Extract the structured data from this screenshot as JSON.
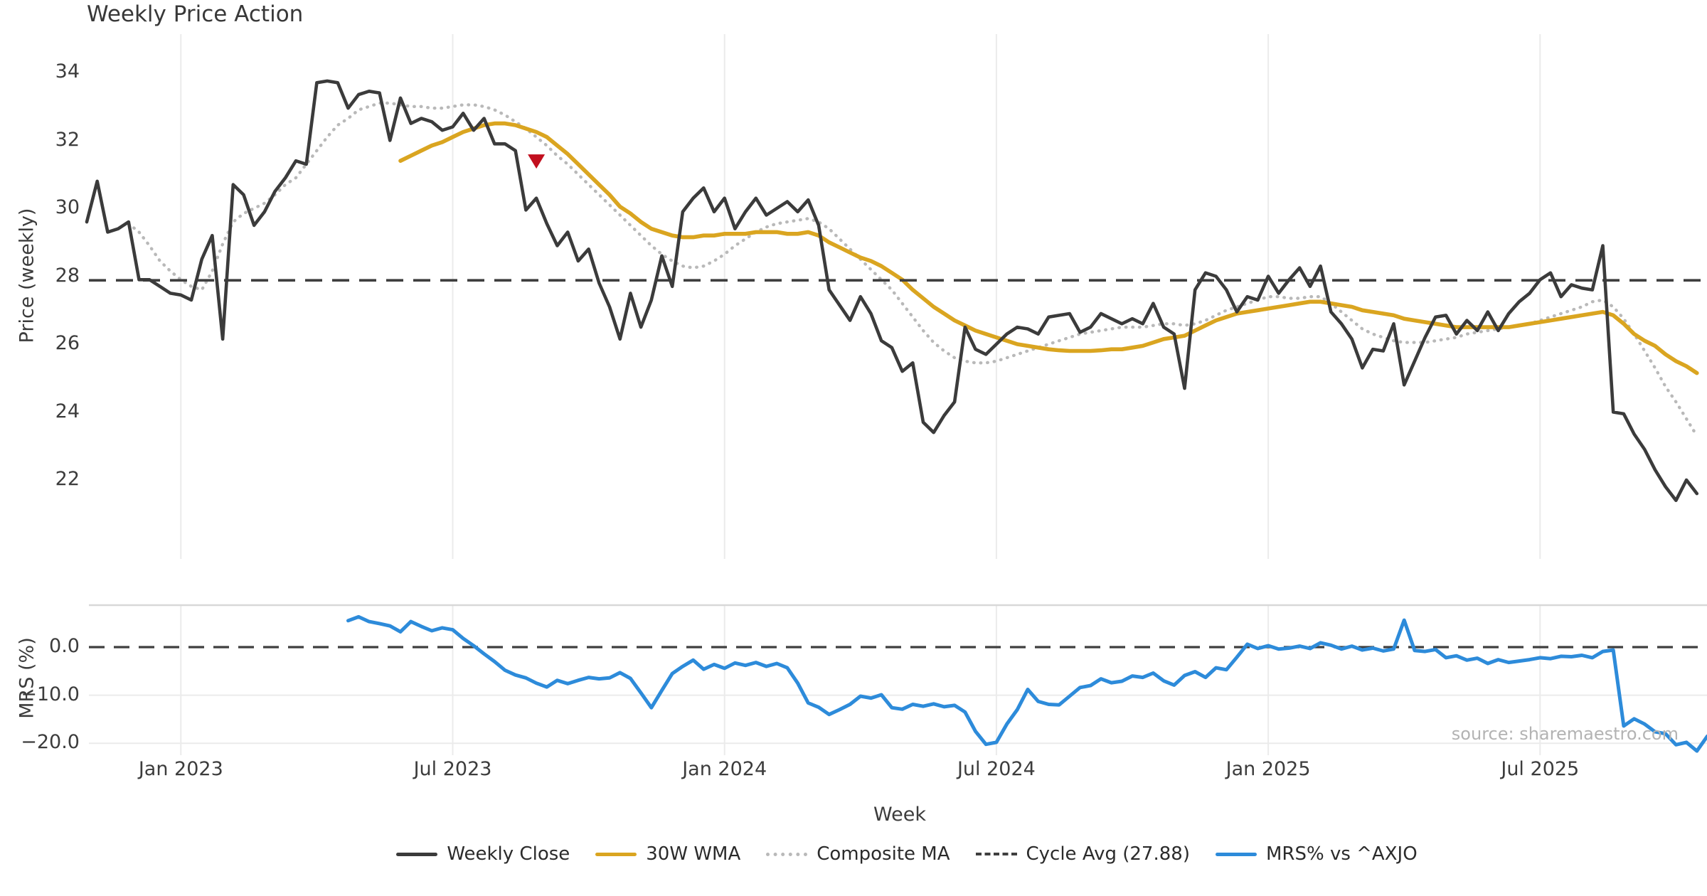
{
  "title": "Weekly Price Action",
  "source_note": "source: sharemaestro.com",
  "colors": {
    "weekly_close": "#3b3b3b",
    "wma_30w": "#daa520",
    "composite_ma": "#b9b9b9",
    "cycle_avg": "#3f3f3f",
    "mrs": "#2d8bda",
    "marker": "#c20f1e",
    "gridline": "#ebebeb",
    "spine": "#d8d8d8"
  },
  "legend": {
    "items": [
      {
        "label": "Weekly Close",
        "swatch": "solid-dark"
      },
      {
        "label": "30W WMA",
        "swatch": "solid-gold"
      },
      {
        "label": "Composite MA",
        "swatch": "dotted-gray"
      },
      {
        "label": "Cycle Avg (27.88)",
        "swatch": "dashed-dark"
      },
      {
        "label": "MRS% vs ^AXJO",
        "swatch": "solid-blue"
      }
    ]
  },
  "axes": {
    "main": {
      "ylabel": "Price (weekly)",
      "ylim": [
        21.0,
        34.5
      ],
      "yticks": [
        {
          "label": "34",
          "value": 34
        },
        {
          "label": "32",
          "value": 32
        },
        {
          "label": "30",
          "value": 30
        },
        {
          "label": "28",
          "value": 28
        },
        {
          "label": "26",
          "value": 26
        },
        {
          "label": "24",
          "value": 24
        },
        {
          "label": "22",
          "value": 22
        }
      ]
    },
    "bottom": {
      "ylabel": "MRS (%)",
      "yticks": [
        {
          "label": "0.0",
          "value": 0
        },
        {
          "label": "−10.0",
          "value": -10
        },
        {
          "label": "−20.0",
          "value": -20
        }
      ]
    },
    "x": {
      "label": "Week",
      "ticks": [
        {
          "label": "Jan 2023",
          "week": 9
        },
        {
          "label": "Jul 2023",
          "week": 35
        },
        {
          "label": "Jan 2024",
          "week": 61
        },
        {
          "label": "Jul 2024",
          "week": 87
        },
        {
          "label": "Jan 2025",
          "week": 113
        },
        {
          "label": "Jul 2025",
          "week": 139
        }
      ]
    }
  },
  "chart_data": {
    "type": "line",
    "x_unit": "weekly index (0 = first plotted week, late Oct 2022)",
    "grid": "vertical gridlines at month ticks; light horizontal gridlines in lower panel",
    "legend_position": "bottom center",
    "cycle_avg": 27.88,
    "marker": {
      "week_index": 43,
      "price": 31.4,
      "shape": "triangle-down",
      "meaning": "sell signal"
    },
    "panels": [
      {
        "name": "price",
        "ylabel": "Price (weekly)",
        "ylim": [
          21.0,
          34.5
        ],
        "series": [
          {
            "name": "Weekly Close",
            "style": "solid",
            "start_index": 0,
            "values": [
              29.6,
              30.8,
              29.3,
              29.4,
              29.6,
              27.9,
              27.9,
              27.7,
              27.5,
              27.45,
              27.3,
              28.5,
              29.2,
              26.15,
              30.7,
              30.4,
              29.5,
              29.9,
              30.5,
              30.9,
              31.4,
              31.3,
              33.7,
              33.75,
              33.7,
              32.95,
              33.35,
              33.45,
              33.4,
              32.0,
              33.25,
              32.5,
              32.65,
              32.55,
              32.3,
              32.4,
              32.8,
              32.3,
              32.65,
              31.9,
              31.9,
              31.7,
              29.95,
              30.3,
              29.55,
              28.9,
              29.3,
              28.45,
              28.8,
              27.8,
              27.1,
              26.15,
              27.5,
              26.5,
              27.3,
              28.6,
              27.7,
              29.9,
              30.3,
              30.6,
              29.9,
              30.3,
              29.4,
              29.9,
              30.3,
              29.8,
              30.0,
              30.2,
              29.9,
              30.25,
              29.5,
              27.6,
              27.15,
              26.7,
              27.4,
              26.9,
              26.1,
              25.9,
              25.2,
              25.45,
              23.7,
              23.4,
              23.9,
              24.3,
              26.5,
              25.85,
              25.7,
              26.0,
              26.3,
              26.5,
              26.45,
              26.3,
              26.8,
              26.85,
              26.9,
              26.35,
              26.5,
              26.9,
              26.75,
              26.6,
              26.75,
              26.6,
              27.2,
              26.5,
              26.3,
              24.7,
              27.6,
              28.1,
              28.0,
              27.6,
              26.95,
              27.4,
              27.3,
              28.0,
              27.5,
              27.9,
              28.25,
              27.7,
              28.3,
              26.95,
              26.6,
              26.15,
              25.3,
              25.85,
              25.8,
              26.6,
              24.8,
              25.5,
              26.2,
              26.8,
              26.85,
              26.3,
              26.7,
              26.4,
              26.95,
              26.4,
              26.9,
              27.25,
              27.5,
              27.9,
              28.1,
              27.4,
              27.75,
              27.65,
              27.6,
              28.9,
              24.0,
              23.95,
              23.35,
              22.9,
              22.3,
              21.8,
              21.4,
              22.0,
              21.6
            ]
          },
          {
            "name": "30W WMA",
            "style": "solid",
            "start_index": 30,
            "values": [
              31.4,
              31.55,
              31.7,
              31.85,
              31.95,
              32.1,
              32.25,
              32.35,
              32.45,
              32.5,
              32.5,
              32.45,
              32.35,
              32.25,
              32.1,
              31.85,
              31.6,
              31.3,
              31.0,
              30.7,
              30.4,
              30.05,
              29.85,
              29.6,
              29.4,
              29.3,
              29.2,
              29.15,
              29.15,
              29.2,
              29.2,
              29.25,
              29.25,
              29.25,
              29.3,
              29.3,
              29.3,
              29.25,
              29.25,
              29.3,
              29.2,
              29.0,
              28.85,
              28.7,
              28.55,
              28.45,
              28.3,
              28.1,
              27.9,
              27.6,
              27.35,
              27.1,
              26.9,
              26.7,
              26.55,
              26.4,
              26.3,
              26.2,
              26.1,
              26.0,
              25.95,
              25.9,
              25.85,
              25.82,
              25.8,
              25.8,
              25.8,
              25.82,
              25.85,
              25.85,
              25.9,
              25.95,
              26.05,
              26.15,
              26.2,
              26.25,
              26.4,
              26.55,
              26.7,
              26.8,
              26.9,
              26.95,
              27.0,
              27.05,
              27.1,
              27.15,
              27.2,
              27.25,
              27.25,
              27.2,
              27.15,
              27.1,
              27.0,
              26.95,
              26.9,
              26.85,
              26.75,
              26.7,
              26.65,
              26.6,
              26.55,
              26.5,
              26.5,
              26.5,
              26.5,
              26.5,
              26.5,
              26.55,
              26.6,
              26.65,
              26.7,
              26.75,
              26.8,
              26.85,
              26.9,
              26.95,
              26.85,
              26.6,
              26.3,
              26.1,
              25.95,
              25.7,
              25.5,
              25.35,
              25.15
            ]
          },
          {
            "name": "Composite MA",
            "style": "dotted",
            "start_index": 4,
            "values": [
              29.55,
              29.3,
              28.9,
              28.45,
              28.15,
              27.9,
              27.7,
              27.6,
              28.15,
              28.95,
              29.6,
              29.85,
              30.0,
              30.15,
              30.4,
              30.7,
              30.9,
              31.3,
              31.7,
              32.1,
              32.45,
              32.65,
              32.9,
              33.0,
              33.1,
              33.1,
              33.05,
              33.0,
              33.0,
              32.95,
              32.95,
              33.0,
              33.05,
              33.05,
              33.0,
              32.9,
              32.75,
              32.55,
              32.35,
              32.1,
              31.85,
              31.55,
              31.3,
              31.0,
              30.7,
              30.4,
              30.1,
              29.8,
              29.5,
              29.2,
              28.9,
              28.65,
              28.45,
              28.3,
              28.25,
              28.3,
              28.45,
              28.65,
              28.9,
              29.1,
              29.3,
              29.45,
              29.55,
              29.6,
              29.65,
              29.7,
              29.6,
              29.4,
              29.1,
              28.8,
              28.5,
              28.2,
              27.9,
              27.6,
              27.2,
              26.8,
              26.4,
              26.05,
              25.8,
              25.6,
              25.5,
              25.45,
              25.45,
              25.5,
              25.6,
              25.7,
              25.8,
              25.9,
              26.0,
              26.1,
              26.2,
              26.3,
              26.35,
              26.4,
              26.45,
              26.5,
              26.5,
              26.5,
              26.55,
              26.6,
              26.6,
              26.55,
              26.6,
              26.7,
              26.85,
              27.0,
              27.1,
              27.2,
              27.3,
              27.4,
              27.4,
              27.35,
              27.35,
              27.4,
              27.4,
              27.2,
              26.95,
              26.7,
              26.45,
              26.3,
              26.2,
              26.1,
              26.05,
              26.05,
              26.05,
              26.1,
              26.15,
              26.2,
              26.3,
              26.35,
              26.4,
              26.45,
              26.5,
              26.55,
              26.6,
              26.7,
              26.8,
              26.9,
              27.0,
              27.1,
              27.25,
              27.3,
              27.1,
              26.75,
              26.3,
              25.8,
              25.3,
              24.75,
              24.3,
              23.8,
              23.3
            ]
          },
          {
            "name": "Cycle Avg (27.88)",
            "style": "dashed-horizontal",
            "value": 27.88
          }
        ]
      },
      {
        "name": "mrs",
        "ylabel": "MRS (%)",
        "ylim": [
          -24,
          9
        ],
        "zero_line": "dashed",
        "series": [
          {
            "name": "MRS% vs ^AXJO",
            "style": "solid",
            "start_index": 25,
            "values": [
              5.5,
              6.3,
              5.3,
              4.9,
              4.4,
              3.2,
              5.3,
              4.3,
              3.4,
              4.0,
              3.6,
              1.8,
              0.3,
              -1.4,
              -3.0,
              -4.8,
              -5.8,
              -6.4,
              -7.5,
              -8.3,
              -6.9,
              -7.6,
              -6.9,
              -6.3,
              -6.6,
              -6.4,
              -5.3,
              -6.5,
              -9.5,
              -12.6,
              -9.0,
              -5.5,
              -4.0,
              -2.7,
              -4.6,
              -3.6,
              -4.4,
              -3.3,
              -3.8,
              -3.2,
              -4.0,
              -3.4,
              -4.3,
              -7.5,
              -11.6,
              -12.5,
              -14.0,
              -13.0,
              -11.9,
              -10.2,
              -10.6,
              -9.9,
              -12.6,
              -12.9,
              -11.9,
              -12.3,
              -11.8,
              -12.4,
              -12.1,
              -13.5,
              -17.5,
              -20.2,
              -19.8,
              -16.0,
              -13.0,
              -8.8,
              -11.3,
              -11.9,
              -12.0,
              -10.2,
              -8.4,
              -8.0,
              -6.6,
              -7.4,
              -7.1,
              -6.0,
              -6.3,
              -5.4,
              -7.0,
              -7.9,
              -5.9,
              -5.1,
              -6.3,
              -4.3,
              -4.7,
              -2.1,
              0.6,
              -0.3,
              0.3,
              -0.4,
              -0.2,
              0.2,
              -0.3,
              0.9,
              0.4,
              -0.4,
              0.2,
              -0.6,
              -0.2,
              -0.8,
              -0.4,
              5.6,
              -0.7,
              -0.9,
              -0.5,
              -2.2,
              -1.8,
              -2.7,
              -2.3,
              -3.4,
              -2.6,
              -3.2,
              -2.9,
              -2.6,
              -2.2,
              -2.4,
              -1.9,
              -2.0,
              -1.7,
              -2.2,
              -0.9,
              -0.6,
              -16.4,
              -14.9,
              -16.0,
              -17.6,
              -18.0,
              -20.3,
              -19.8,
              -21.6,
              -18.5
            ]
          }
        ]
      }
    ]
  }
}
